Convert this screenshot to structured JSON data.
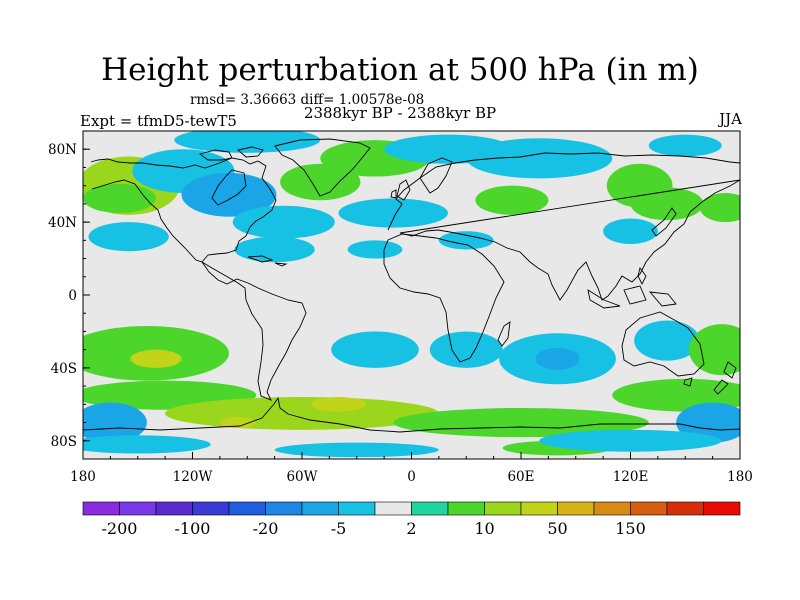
{
  "title": "Height perturbation at 500 hPa (in m)",
  "stats": "rmsd= 3.36663 diff= 1.00578e-08",
  "expt": "Expt = tfmD5-tewT5",
  "period": "2388kyr BP - 2388kyr BP",
  "season": "JJA",
  "map": {
    "lon_range": [
      -180,
      180
    ],
    "lat_range": [
      -90,
      90
    ],
    "lon_ticks": [
      {
        "value": -180,
        "label": "180"
      },
      {
        "value": -120,
        "label": "120W"
      },
      {
        "value": -60,
        "label": "60W"
      },
      {
        "value": 0,
        "label": "0"
      },
      {
        "value": 60,
        "label": "60E"
      },
      {
        "value": 120,
        "label": "120E"
      },
      {
        "value": 180,
        "label": "180"
      }
    ],
    "lat_ticks": [
      {
        "value": 80,
        "label": "80N"
      },
      {
        "value": 40,
        "label": "40N"
      },
      {
        "value": 0,
        "label": "0"
      },
      {
        "value": -40,
        "label": "40S"
      },
      {
        "value": -80,
        "label": "80S"
      }
    ],
    "background_color": "#e8e8e8"
  },
  "colorbar": {
    "colors": [
      "#8a2be2",
      "#7b38e8",
      "#5a2ccf",
      "#3a3bd6",
      "#1e5fe0",
      "#1f86e6",
      "#1aa5e6",
      "#17c1e4",
      "#e8e8e8",
      "#1fd6a0",
      "#4cd62c",
      "#9ad61c",
      "#c2d41a",
      "#d6b418",
      "#d68c14",
      "#d65e10",
      "#d6300a",
      "#e80c00"
    ],
    "labels": [
      {
        "index": 1,
        "text": "-200"
      },
      {
        "index": 3,
        "text": "-100"
      },
      {
        "index": 5,
        "text": "-20"
      },
      {
        "index": 7,
        "text": "-5"
      },
      {
        "index": 9,
        "text": "2"
      },
      {
        "index": 11,
        "text": "10"
      },
      {
        "index": 13,
        "text": "50"
      },
      {
        "index": 15,
        "text": "150"
      }
    ]
  },
  "anomalies": [
    {
      "lon": -155,
      "lat": 60,
      "rx": 28,
      "ry": 16,
      "level": 11
    },
    {
      "lon": -160,
      "lat": 53,
      "rx": 20,
      "ry": 8,
      "level": 10
    },
    {
      "lon": -125,
      "lat": 68,
      "rx": 28,
      "ry": 12,
      "level": 7
    },
    {
      "lon": -100,
      "lat": 55,
      "rx": 26,
      "ry": 12,
      "level": 6
    },
    {
      "lon": -90,
      "lat": 85,
      "rx": 40,
      "ry": 7,
      "level": 7
    },
    {
      "lon": -50,
      "lat": 62,
      "rx": 22,
      "ry": 10,
      "level": 10
    },
    {
      "lon": -20,
      "lat": 75,
      "rx": 30,
      "ry": 10,
      "level": 10
    },
    {
      "lon": 20,
      "lat": 80,
      "rx": 35,
      "ry": 8,
      "level": 7
    },
    {
      "lon": 70,
      "lat": 75,
      "rx": 40,
      "ry": 11,
      "level": 7
    },
    {
      "lon": 150,
      "lat": 82,
      "rx": 20,
      "ry": 6,
      "level": 7
    },
    {
      "lon": 125,
      "lat": 60,
      "rx": 18,
      "ry": 12,
      "level": 10
    },
    {
      "lon": 140,
      "lat": 50,
      "rx": 20,
      "ry": 9,
      "level": 10
    },
    {
      "lon": 55,
      "lat": 52,
      "rx": 20,
      "ry": 8,
      "level": 10
    },
    {
      "lon": -70,
      "lat": 40,
      "rx": 28,
      "ry": 9,
      "level": 7
    },
    {
      "lon": -10,
      "lat": 45,
      "rx": 30,
      "ry": 8,
      "level": 7
    },
    {
      "lon": -155,
      "lat": 32,
      "rx": 22,
      "ry": 8,
      "level": 7
    },
    {
      "lon": -75,
      "lat": 25,
      "rx": 22,
      "ry": 7,
      "level": 7
    },
    {
      "lon": -20,
      "lat": 25,
      "rx": 15,
      "ry": 5,
      "level": 7
    },
    {
      "lon": 30,
      "lat": 30,
      "rx": 15,
      "ry": 5,
      "level": 7
    },
    {
      "lon": 120,
      "lat": 35,
      "rx": 15,
      "ry": 7,
      "level": 7
    },
    {
      "lon": 172,
      "lat": 48,
      "rx": 14,
      "ry": 8,
      "level": 10
    },
    {
      "lon": -145,
      "lat": -32,
      "rx": 45,
      "ry": 15,
      "level": 10
    },
    {
      "lon": -140,
      "lat": -35,
      "rx": 14,
      "ry": 5,
      "level": 12
    },
    {
      "lon": -20,
      "lat": -30,
      "rx": 24,
      "ry": 10,
      "level": 7
    },
    {
      "lon": 30,
      "lat": -30,
      "rx": 20,
      "ry": 10,
      "level": 7
    },
    {
      "lon": 80,
      "lat": -35,
      "rx": 32,
      "ry": 14,
      "level": 7
    },
    {
      "lon": 80,
      "lat": -35,
      "rx": 12,
      "ry": 6,
      "level": 6
    },
    {
      "lon": 140,
      "lat": -25,
      "rx": 18,
      "ry": 11,
      "level": 7
    },
    {
      "lon": 170,
      "lat": -30,
      "rx": 18,
      "ry": 14,
      "level": 10
    },
    {
      "lon": 150,
      "lat": -55,
      "rx": 40,
      "ry": 9,
      "level": 10
    },
    {
      "lon": -135,
      "lat": -55,
      "rx": 50,
      "ry": 8,
      "level": 10
    },
    {
      "lon": -60,
      "lat": -65,
      "rx": 75,
      "ry": 9,
      "level": 11
    },
    {
      "lon": -40,
      "lat": -60,
      "rx": 15,
      "ry": 4,
      "level": 12
    },
    {
      "lon": -95,
      "lat": -70,
      "rx": 10,
      "ry": 3,
      "level": 12
    },
    {
      "lon": 60,
      "lat": -70,
      "rx": 70,
      "ry": 8,
      "level": 10
    },
    {
      "lon": -165,
      "lat": -70,
      "rx": 20,
      "ry": 11,
      "level": 6
    },
    {
      "lon": 165,
      "lat": -70,
      "rx": 20,
      "ry": 11,
      "level": 6
    },
    {
      "lon": -150,
      "lat": -82,
      "rx": 40,
      "ry": 5,
      "level": 7
    },
    {
      "lon": -30,
      "lat": -85,
      "rx": 45,
      "ry": 4,
      "level": 7
    },
    {
      "lon": 80,
      "lat": -84,
      "rx": 30,
      "ry": 4,
      "level": 10
    },
    {
      "lon": 120,
      "lat": -80,
      "rx": 50,
      "ry": 6,
      "level": 7
    }
  ]
}
